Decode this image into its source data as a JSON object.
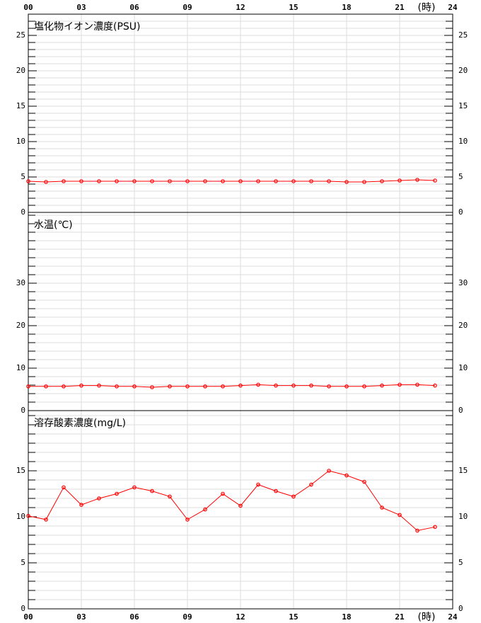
{
  "chart_data": [
    {
      "type": "line",
      "title": "塩化物イオン濃度(PSU)",
      "x_label": "(時)",
      "color": "#ff0000",
      "xlim": [
        0,
        24
      ],
      "xticks": [
        {
          "value": 0,
          "label": "00"
        },
        {
          "value": 3,
          "label": "03"
        },
        {
          "value": 6,
          "label": "06"
        },
        {
          "value": 9,
          "label": "09"
        },
        12,
        15,
        18,
        21,
        24
      ],
      "ylim": [
        0,
        28
      ],
      "yticks": [
        0,
        5,
        10,
        15,
        20,
        25
      ],
      "minor_yticks": [
        1,
        2,
        3,
        4,
        6,
        7,
        8,
        9,
        11,
        12,
        13,
        14,
        16,
        17,
        18,
        19,
        21,
        22,
        23,
        24,
        26,
        27
      ],
      "grid": true,
      "x": [
        0,
        1,
        2,
        3,
        4,
        5,
        6,
        7,
        8,
        9,
        10,
        11,
        12,
        13,
        14,
        15,
        16,
        17,
        18,
        19,
        20,
        21,
        22,
        23
      ],
      "values": [
        4.4,
        4.3,
        4.4,
        4.4,
        4.4,
        4.4,
        4.4,
        4.4,
        4.4,
        4.4,
        4.4,
        4.4,
        4.4,
        4.4,
        4.4,
        4.4,
        4.4,
        4.4,
        4.3,
        4.3,
        4.4,
        4.5,
        4.6,
        4.5
      ]
    },
    {
      "type": "line",
      "title": "水温(℃)",
      "color": "#ff0000",
      "xlim": [
        0,
        24
      ],
      "ylim": [
        0,
        46.67
      ],
      "yticks": [
        0,
        10,
        20,
        30
      ],
      "minor_yticks": [
        2,
        4,
        6,
        8,
        12,
        14,
        16,
        18,
        22,
        24,
        26,
        28,
        32,
        34,
        36,
        38,
        40,
        42,
        44,
        46
      ],
      "grid": true,
      "x": [
        0,
        1,
        2,
        3,
        4,
        5,
        6,
        7,
        8,
        9,
        10,
        11,
        12,
        13,
        14,
        15,
        16,
        17,
        18,
        19,
        20,
        21,
        22,
        23
      ],
      "values": [
        5.7,
        5.7,
        5.7,
        5.9,
        5.9,
        5.7,
        5.7,
        5.5,
        5.7,
        5.7,
        5.7,
        5.7,
        5.9,
        6.1,
        5.9,
        5.9,
        5.9,
        5.7,
        5.7,
        5.7,
        5.9,
        6.1,
        6.1,
        5.9
      ]
    },
    {
      "type": "line",
      "title": "溶存酸素濃度(mg/L)",
      "x_label": "(時)",
      "color": "#ff0000",
      "xlim": [
        0,
        24
      ],
      "xticks": [
        {
          "value": 0,
          "label": "00"
        },
        {
          "value": 3,
          "label": "03"
        },
        {
          "value": 6,
          "label": "06"
        },
        {
          "value": 9,
          "label": "09"
        },
        12,
        15,
        18,
        21,
        24
      ],
      "ylim": [
        0,
        21.54
      ],
      "yticks": [
        0,
        5,
        10,
        15
      ],
      "minor_yticks": [
        1,
        2,
        3,
        4,
        6,
        7,
        8,
        9,
        11,
        12,
        13,
        14,
        16,
        17,
        18,
        19,
        20,
        21
      ],
      "grid": true,
      "x": [
        0,
        1,
        2,
        3,
        4,
        5,
        6,
        7,
        8,
        9,
        10,
        11,
        12,
        13,
        14,
        15,
        16,
        17,
        18,
        19,
        20,
        21,
        22,
        23
      ],
      "values": [
        10.1,
        9.7,
        13.2,
        11.3,
        12.0,
        12.5,
        13.2,
        12.8,
        12.2,
        9.7,
        10.8,
        12.5,
        11.2,
        13.5,
        12.8,
        12.2,
        13.5,
        15.0,
        14.5,
        13.8,
        11.0,
        10.2,
        8.5,
        8.9
      ]
    }
  ]
}
